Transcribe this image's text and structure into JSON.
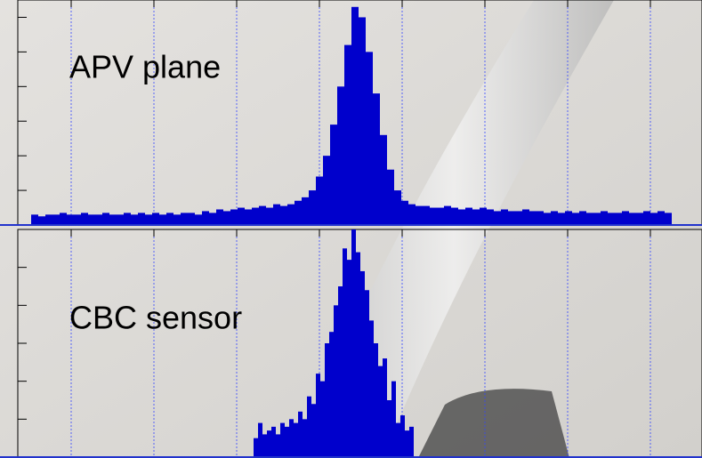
{
  "chart_data": [
    {
      "type": "histogram",
      "annotation": "APV plane",
      "color": "#0000cc",
      "bins": [
        35,
        43,
        51,
        59,
        67,
        75,
        83,
        91,
        99,
        107,
        115,
        123,
        131,
        139,
        147,
        155,
        163,
        171,
        179,
        187,
        195,
        203,
        211,
        219,
        227,
        235,
        243,
        251,
        259,
        267,
        275,
        283,
        291,
        299,
        307,
        315,
        323,
        331,
        339,
        347,
        355,
        363,
        371,
        379,
        387,
        395,
        403,
        411,
        419,
        427,
        435,
        443,
        451,
        459,
        467,
        475,
        483,
        491,
        499,
        507,
        515,
        523,
        531,
        539,
        547,
        555,
        563,
        571,
        579,
        587,
        595,
        603,
        611,
        619,
        627,
        635,
        643,
        651,
        659,
        667,
        675,
        683,
        691,
        699,
        707,
        715,
        723,
        731,
        739,
        747,
        755
      ],
      "values": [
        0.3,
        0.25,
        0.3,
        0.3,
        0.35,
        0.3,
        0.3,
        0.35,
        0.3,
        0.3,
        0.35,
        0.3,
        0.3,
        0.35,
        0.3,
        0.35,
        0.3,
        0.35,
        0.3,
        0.35,
        0.3,
        0.35,
        0.35,
        0.3,
        0.4,
        0.35,
        0.45,
        0.4,
        0.45,
        0.5,
        0.45,
        0.5,
        0.55,
        0.5,
        0.6,
        0.55,
        0.6,
        0.7,
        0.8,
        1.0,
        1.4,
        2.0,
        2.9,
        4.0,
        5.2,
        6.3,
        6.0,
        5.0,
        3.8,
        2.6,
        1.6,
        1.0,
        0.7,
        0.6,
        0.55,
        0.55,
        0.5,
        0.5,
        0.55,
        0.5,
        0.45,
        0.5,
        0.45,
        0.5,
        0.45,
        0.4,
        0.45,
        0.4,
        0.4,
        0.45,
        0.4,
        0.4,
        0.35,
        0.4,
        0.35,
        0.4,
        0.35,
        0.4,
        0.35,
        0.35,
        0.4,
        0.35,
        0.35,
        0.4,
        0.35,
        0.35,
        0.4,
        0.35,
        0.4,
        0.35
      ],
      "xlim": [
        20,
        789
      ],
      "xticks": [
        80,
        173,
        266,
        359,
        452,
        545,
        638,
        731
      ],
      "ylim": [
        0,
        6.5
      ],
      "yticks": [
        1,
        2,
        3,
        4,
        5,
        6
      ],
      "grid": true
    },
    {
      "type": "histogram",
      "annotation": "CBC sensor",
      "color": "#0000cc",
      "bins": [
        285,
        290,
        295,
        300,
        305,
        310,
        315,
        320,
        325,
        330,
        335,
        340,
        345,
        350,
        355,
        360,
        365,
        370,
        375,
        380,
        385,
        390,
        395,
        400,
        405,
        410,
        415,
        420,
        425,
        430,
        435,
        440,
        445,
        450,
        455,
        460,
        465
      ],
      "values": [
        0.5,
        0.9,
        0.6,
        0.7,
        0.8,
        0.6,
        0.9,
        0.8,
        1.0,
        0.9,
        1.2,
        1.0,
        1.6,
        1.4,
        2.2,
        2.0,
        3.0,
        3.3,
        4.0,
        4.5,
        5.5,
        5.2,
        6.0,
        5.4,
        4.9,
        4.4,
        3.6,
        3.0,
        2.4,
        2.6,
        1.5,
        2.0,
        0.9,
        1.1,
        0.7,
        0.8
      ],
      "xlim": [
        20,
        789
      ],
      "xticks": [
        80,
        173,
        266,
        359,
        452,
        545,
        638,
        731
      ],
      "ylim": [
        0,
        6
      ],
      "yticks": [
        1,
        2,
        3,
        4,
        5
      ],
      "grid": true
    }
  ]
}
